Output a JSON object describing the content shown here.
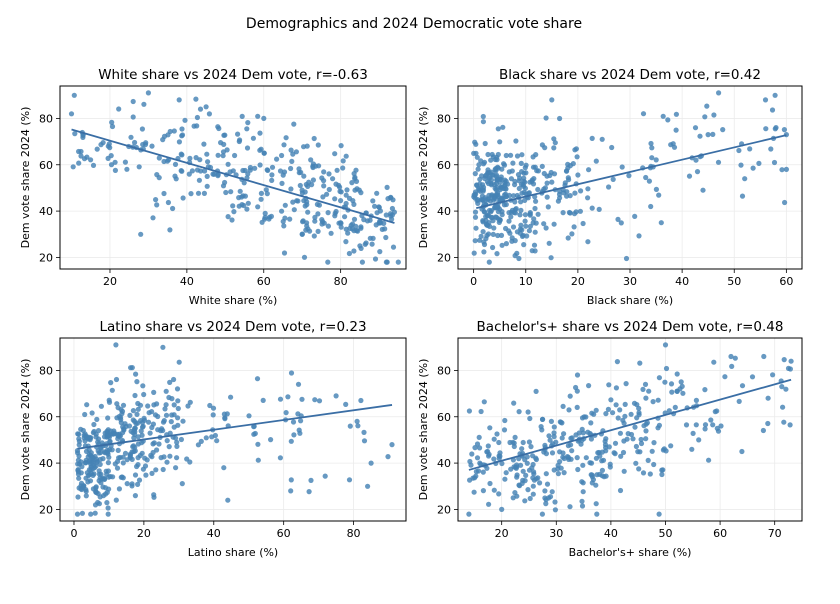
{
  "figure": {
    "title": "Demographics and 2024 Democratic vote share"
  },
  "chart_data": [
    {
      "type": "scatter",
      "title": "White share vs 2024 Dem vote, r=-0.63",
      "xlabel": "White share (%)",
      "ylabel": "Dem vote share 2024 (%)",
      "xlim": [
        7,
        97
      ],
      "ylim": [
        15,
        94
      ],
      "xticks": [
        20,
        40,
        60,
        80
      ],
      "yticks": [
        20,
        40,
        60,
        80
      ],
      "r": -0.63,
      "trend": {
        "slope": -0.48,
        "intercept": 80,
        "x_range": [
          10,
          94
        ]
      },
      "point_color": "#4682b4",
      "line_color": "#3a6ea5",
      "sample_points": [
        [
          10,
          82
        ],
        [
          13,
          73
        ],
        [
          30,
          91
        ],
        [
          38,
          88
        ],
        [
          85,
          25
        ],
        [
          95,
          18
        ],
        [
          28,
          30
        ],
        [
          70,
          30
        ],
        [
          60,
          80
        ],
        [
          45,
          85
        ]
      ]
    },
    {
      "type": "scatter",
      "title": "Black share vs 2024 Dem vote, r=0.42",
      "xlabel": "Black share (%)",
      "ylabel": "Dem vote share 2024 (%)",
      "xlim": [
        -3,
        63
      ],
      "ylim": [
        15,
        94
      ],
      "xticks": [
        0,
        10,
        20,
        30,
        40,
        50,
        60
      ],
      "yticks": [
        20,
        40,
        60,
        80
      ],
      "r": 0.42,
      "trend": {
        "slope": 0.53,
        "intercept": 41,
        "x_range": [
          0.5,
          60
        ]
      },
      "point_color": "#4682b4",
      "line_color": "#3a6ea5",
      "sample_points": [
        [
          47,
          91
        ],
        [
          60,
          73
        ],
        [
          60,
          58
        ],
        [
          56,
          88
        ],
        [
          36,
          35
        ],
        [
          3,
          18
        ],
        [
          15,
          88
        ],
        [
          44,
          49
        ],
        [
          52,
          54
        ]
      ]
    },
    {
      "type": "scatter",
      "title": "Latino share vs 2024 Dem vote, r=0.23",
      "xlabel": "Latino share (%)",
      "ylabel": "Dem vote share 2024 (%)",
      "xlim": [
        -4,
        95
      ],
      "ylim": [
        15,
        94
      ],
      "xticks": [
        0,
        20,
        40,
        60,
        80
      ],
      "yticks": [
        20,
        40,
        60,
        80
      ],
      "r": 0.23,
      "trend": {
        "slope": 0.21,
        "intercept": 46,
        "x_range": [
          1,
          91
        ]
      },
      "point_color": "#4682b4",
      "line_color": "#3a6ea5",
      "sample_points": [
        [
          12,
          91
        ],
        [
          91,
          48
        ],
        [
          84,
          30
        ],
        [
          85,
          40
        ],
        [
          44,
          24
        ],
        [
          1,
          18
        ],
        [
          62,
          28
        ],
        [
          81,
          58
        ],
        [
          75,
          69
        ]
      ]
    },
    {
      "type": "scatter",
      "title": "Bachelor's+ share vs 2024 Dem vote, r=0.48",
      "xlabel": "Bachelor's+ share (%)",
      "ylabel": "Dem vote share 2024 (%)",
      "xlim": [
        12,
        75
      ],
      "ylim": [
        15,
        94
      ],
      "xticks": [
        20,
        30,
        40,
        50,
        60,
        70
      ],
      "yticks": [
        20,
        40,
        60,
        80
      ],
      "r": 0.48,
      "trend": {
        "slope": 0.66,
        "intercept": 27.8,
        "x_range": [
          14,
          73
        ]
      },
      "point_color": "#4682b4",
      "line_color": "#3a6ea5",
      "sample_points": [
        [
          14,
          18
        ],
        [
          50,
          91
        ],
        [
          73,
          84
        ],
        [
          64,
          45
        ],
        [
          68,
          86
        ],
        [
          62,
          86
        ],
        [
          20,
          20
        ],
        [
          16,
          40
        ]
      ]
    }
  ]
}
